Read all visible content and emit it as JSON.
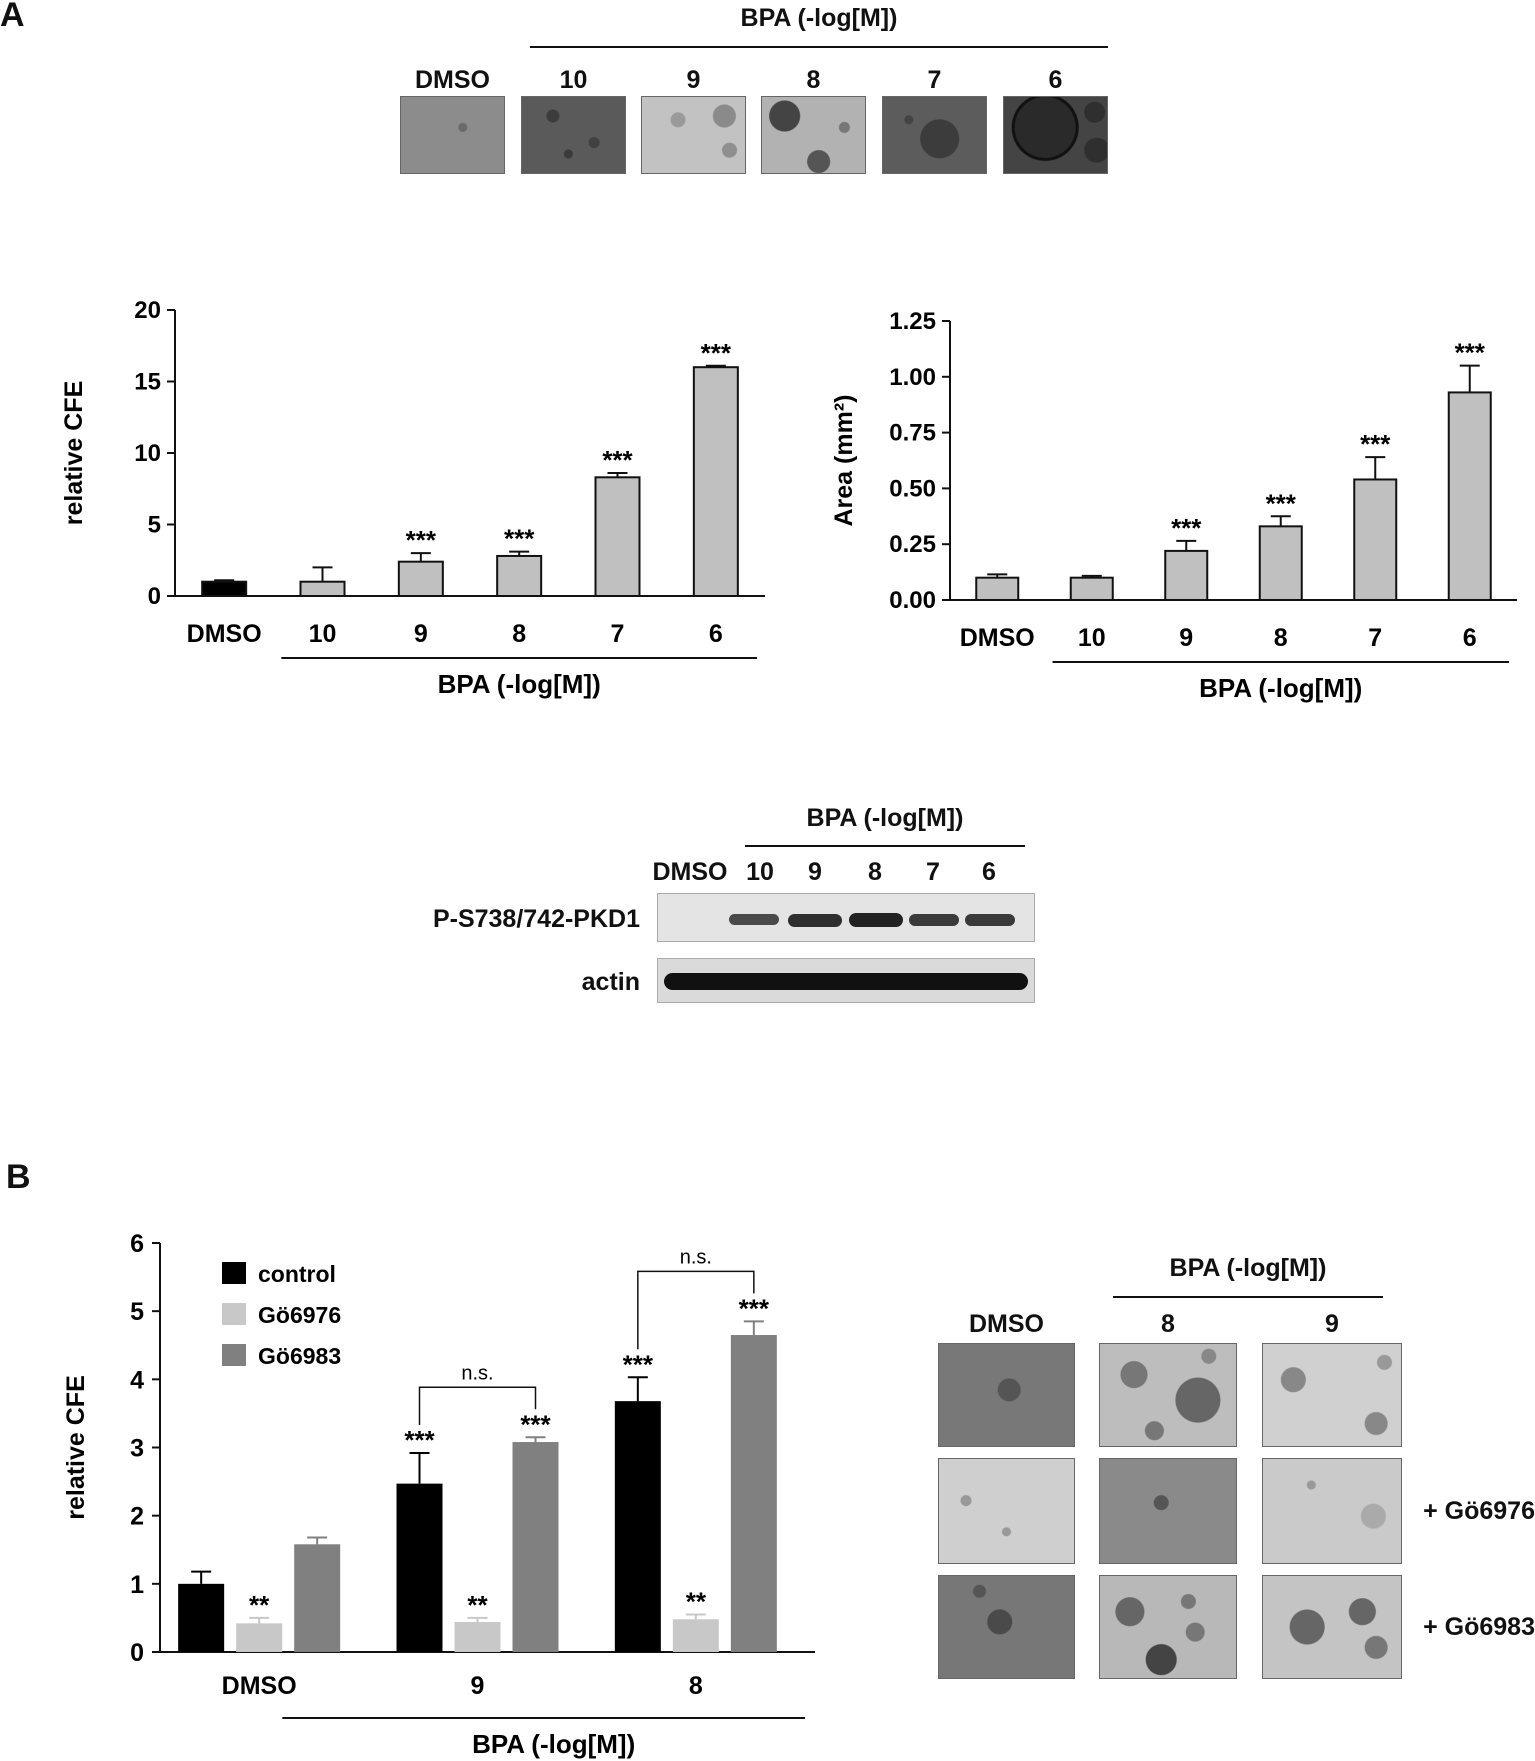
{
  "panels": {
    "a": "A",
    "b": "B"
  },
  "a_images": {
    "header": "BPA (-log[M])",
    "labels": [
      "DMSO",
      "10",
      "9",
      "8",
      "7",
      "6"
    ]
  },
  "western": {
    "header": "BPA (-log[M])",
    "lanes": [
      "DMSO",
      "10",
      "9",
      "8",
      "7",
      "6"
    ],
    "rows": [
      "P-S738/742-PKD1",
      "actin"
    ]
  },
  "b_images": {
    "header": "BPA (-log[M])",
    "columns": [
      "DMSO",
      "8",
      "9"
    ],
    "rows": [
      "+ Gö6976",
      "+ Gö6983"
    ]
  },
  "colors": {
    "bar_gray": "#c0c0c0",
    "bar_black": "#000000",
    "bar_light": "#c8c8c8",
    "bar_dark": "#808080"
  },
  "chart_data": [
    {
      "type": "bar",
      "ylabel": "relative  CFE",
      "categories": [
        "DMSO",
        "10",
        "9",
        "8",
        "7",
        "6"
      ],
      "group_label": "BPA (-log[M])",
      "values": [
        1.0,
        1.0,
        2.4,
        2.8,
        8.3,
        16.0
      ],
      "errors": [
        0.1,
        1.0,
        0.6,
        0.3,
        0.3,
        0.1
      ],
      "significance": [
        "",
        "",
        "***",
        "***",
        "***",
        "***"
      ],
      "ylim": [
        0,
        20
      ],
      "yticks": [
        "0",
        "5",
        "10",
        "15",
        "20"
      ]
    },
    {
      "type": "bar",
      "ylabel": "Area (mm²)",
      "categories": [
        "DMSO",
        "10",
        "9",
        "8",
        "7",
        "6"
      ],
      "group_label": "BPA (-log[M])",
      "values": [
        0.1,
        0.1,
        0.22,
        0.33,
        0.54,
        0.93
      ],
      "errors": [
        0.015,
        0.008,
        0.045,
        0.045,
        0.1,
        0.12
      ],
      "significance": [
        "",
        "",
        "***",
        "***",
        "***",
        "***"
      ],
      "ylim": [
        0,
        1.25
      ],
      "yticks": [
        "0.00",
        "0.25",
        "0.50",
        "0.75",
        "1.00",
        "1.25"
      ]
    },
    {
      "type": "bar",
      "ylabel": "relative CFE",
      "categories": [
        "DMSO",
        "9",
        "8"
      ],
      "group_label": "BPA (-log[M])",
      "ylim": [
        0,
        6
      ],
      "yticks": [
        "0",
        "1",
        "2",
        "3",
        "4",
        "5",
        "6"
      ],
      "legend": "top-left",
      "series": [
        {
          "name": "control",
          "values": [
            1.0,
            2.47,
            3.68
          ],
          "errors": [
            0.18,
            0.45,
            0.35
          ],
          "significance": [
            "",
            "***",
            "***"
          ]
        },
        {
          "name": "Gö6976",
          "values": [
            0.42,
            0.44,
            0.48
          ],
          "errors": [
            0.08,
            0.06,
            0.07
          ],
          "significance": [
            "**",
            "**",
            "**"
          ]
        },
        {
          "name": "Gö6983",
          "values": [
            1.58,
            3.08,
            4.65
          ],
          "errors": [
            0.1,
            0.07,
            0.2
          ],
          "significance": [
            "",
            "***",
            "***"
          ]
        }
      ],
      "comparisons": [
        "n.s.",
        "n.s."
      ]
    }
  ]
}
